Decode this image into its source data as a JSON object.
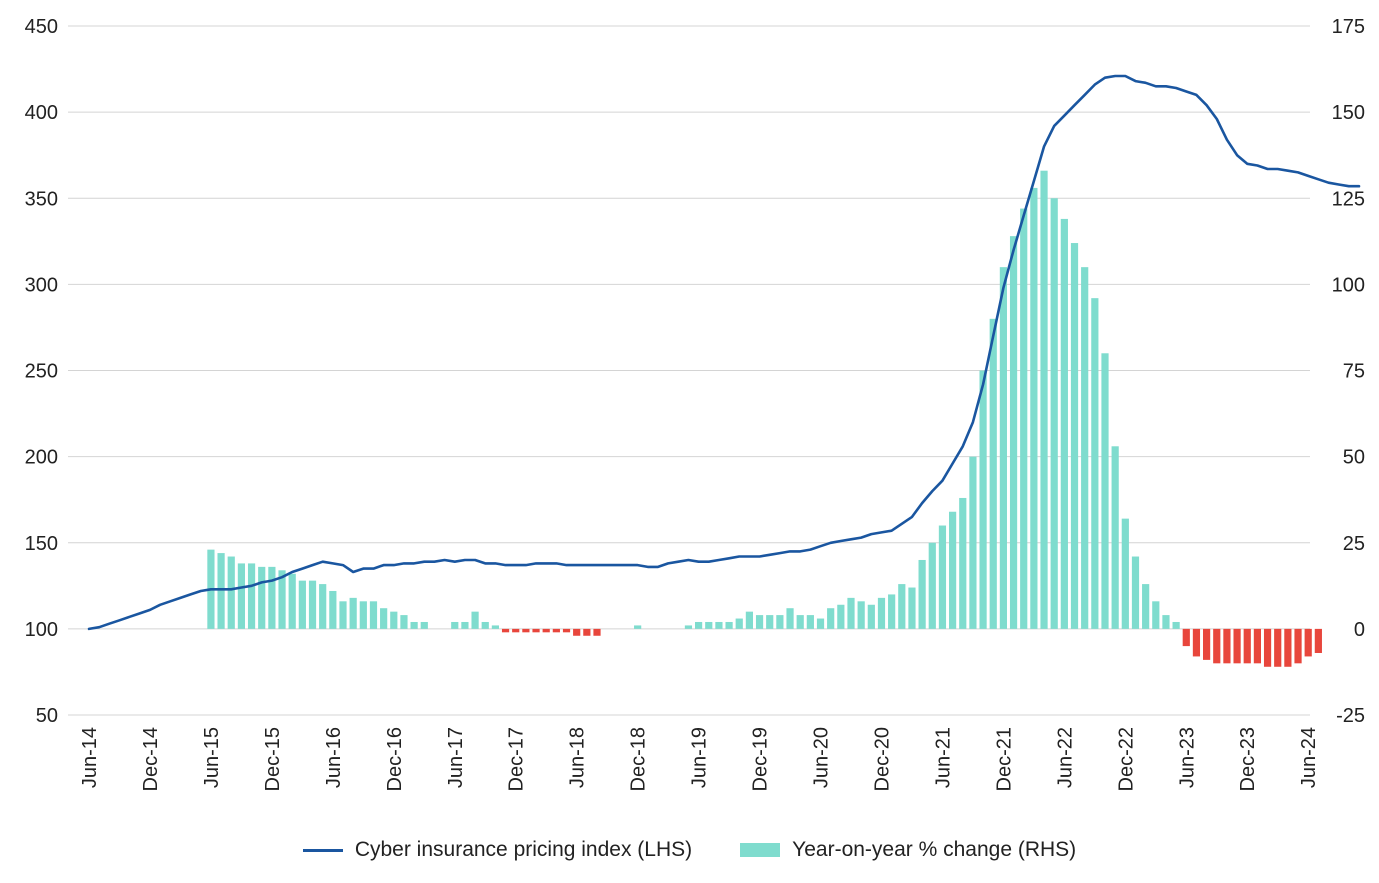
{
  "chart_data": {
    "type": "bar+line",
    "title": "",
    "left_axis": {
      "min": 50,
      "max": 450,
      "ticks": [
        "450",
        "400",
        "350",
        "300",
        "250",
        "200",
        "150",
        "100",
        "50"
      ]
    },
    "right_axis": {
      "min": -25,
      "max": 175,
      "ticks": [
        "175",
        "150",
        "125",
        "100",
        "75",
        "50",
        "25",
        "0",
        "-25"
      ]
    },
    "x_tick_labels": [
      "Jun-14",
      "Dec-14",
      "Jun-15",
      "Dec-15",
      "Jun-16",
      "Dec-16",
      "Jun-17",
      "Dec-17",
      "Jun-18",
      "Dec-18",
      "Jun-19",
      "Dec-19",
      "Jun-20",
      "Dec-20",
      "Jun-21",
      "Dec-21",
      "Jun-22",
      "Dec-22",
      "Jun-23",
      "Dec-23",
      "Jun-24"
    ],
    "start_month": "Jun-14",
    "colors": {
      "line": "#1a56a0",
      "bar_positive": "#7fdcce",
      "bar_negative": "#e8463c",
      "grid": "#d4d4d4"
    },
    "series": [
      {
        "name": "Cyber insurance pricing index (LHS)",
        "axis": "left",
        "kind": "line",
        "values": [
          100,
          101,
          103,
          105,
          107,
          109,
          111,
          114,
          116,
          118,
          120,
          122,
          123,
          123,
          123,
          124,
          125,
          127,
          128,
          130,
          133,
          135,
          137,
          139,
          138,
          137,
          133,
          135,
          135,
          137,
          137,
          138,
          138,
          139,
          139,
          140,
          139,
          140,
          140,
          138,
          138,
          137,
          137,
          137,
          138,
          138,
          138,
          137,
          137,
          137,
          137,
          137,
          137,
          137,
          137,
          136,
          136,
          138,
          139,
          140,
          139,
          139,
          140,
          141,
          142,
          142,
          142,
          143,
          144,
          145,
          145,
          146,
          148,
          150,
          151,
          152,
          153,
          155,
          156,
          157,
          161,
          165,
          173,
          180,
          186,
          196,
          206,
          220,
          242,
          270,
          298,
          320,
          340,
          360,
          380,
          392,
          398,
          404,
          410,
          416,
          420,
          421,
          421,
          418,
          417,
          415,
          415,
          414,
          412,
          410,
          404,
          396,
          384,
          375,
          370,
          369,
          367,
          367,
          366,
          365,
          363,
          361,
          359,
          358,
          357,
          357
        ]
      },
      {
        "name": "Year-on-year % change (RHS)",
        "axis": "right",
        "kind": "bar",
        "values": [
          0,
          0,
          0,
          0,
          0,
          0,
          0,
          0,
          0,
          0,
          0,
          0,
          23,
          22,
          21,
          19,
          19,
          18,
          18,
          17,
          16,
          14,
          14,
          13,
          11,
          8,
          9,
          8,
          8,
          6,
          5,
          4,
          2,
          2,
          0,
          0,
          2,
          2,
          5,
          2,
          1,
          -1,
          -1,
          -1,
          -1,
          -1,
          -1,
          -1,
          -2,
          -2,
          -2,
          0,
          0,
          0,
          1,
          0,
          0,
          0,
          0,
          1,
          2,
          2,
          2,
          2,
          3,
          5,
          4,
          4,
          4,
          6,
          4,
          4,
          3,
          6,
          7,
          9,
          8,
          7,
          9,
          10,
          13,
          12,
          20,
          25,
          30,
          34,
          38,
          50,
          75,
          90,
          105,
          114,
          122,
          128,
          133,
          125,
          119,
          112,
          105,
          96,
          80,
          53,
          32,
          21,
          13,
          8,
          4,
          2,
          -5,
          -8,
          -9,
          -10,
          -10,
          -10,
          -10,
          -10,
          -11,
          -11,
          -11,
          -10,
          -8,
          -7
        ]
      }
    ]
  },
  "legend": {
    "line_label": "Cyber insurance pricing index (LHS)",
    "bar_label": "Year-on-year % change (RHS)"
  }
}
